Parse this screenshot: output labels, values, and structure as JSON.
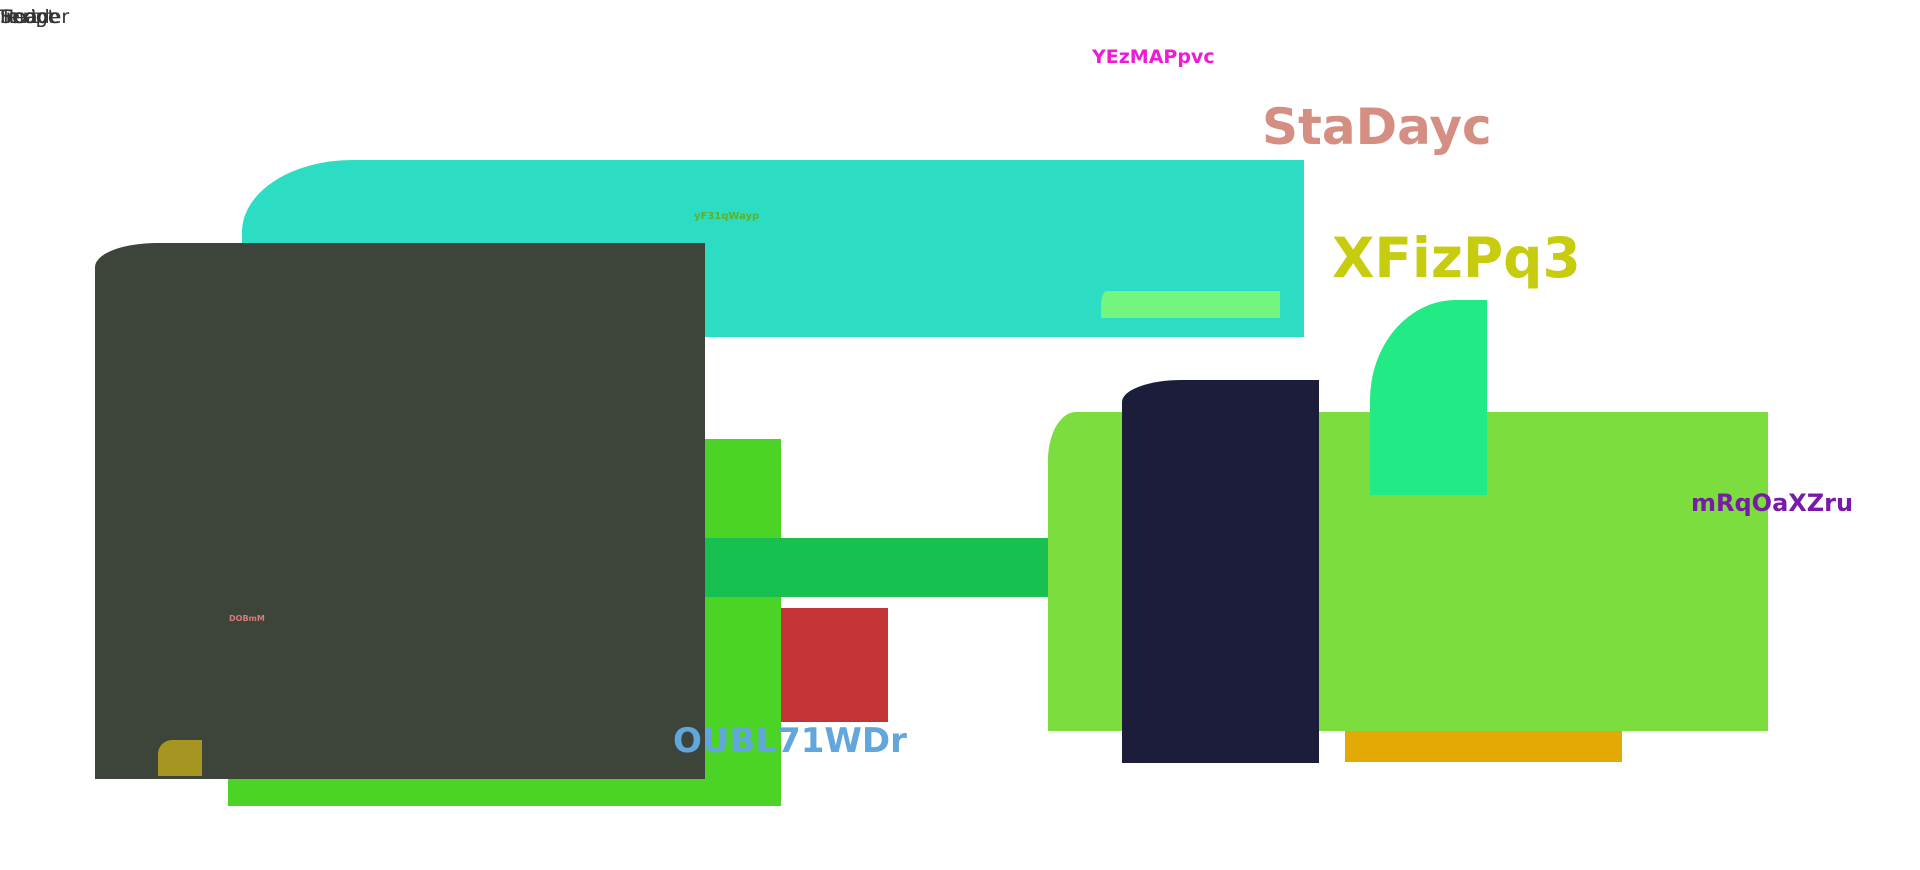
{
  "corner_label": {
    "layers": [
      "Header",
      "Image",
      "Text",
      "Script"
    ]
  },
  "labels": {
    "yezmappvc": "YEzMAPpvc",
    "stadayc": "StaDayc",
    "xfizpq3": "XFizPq3",
    "yf31qwayp": "yF31qWayp",
    "mrqoaxzru": "mRqOaXZru",
    "dobmm": "DOBmM",
    "oubl71wdr": "OUBL71WDr"
  },
  "colors": {
    "teal": "#2dddc3",
    "light_green": "#73f57f",
    "green": "#4bd426",
    "green_bar": "#18c050",
    "red": "#c33434",
    "lime": "#7bde3e",
    "dark_gray": "#3d453a",
    "olive": "#a69520",
    "navy": "#1b1d3b",
    "mint": "#22ea84",
    "amber": "#e3a904"
  }
}
